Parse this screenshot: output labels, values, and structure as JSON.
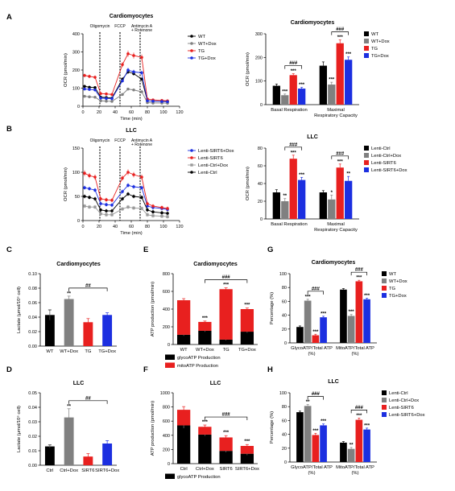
{
  "panel_letters": [
    "A",
    "B",
    "C",
    "D",
    "E",
    "F",
    "G",
    "H"
  ],
  "colors": {
    "black": "#000000",
    "grey": "#808080",
    "red": "#e8201f",
    "blue": "#1c2fe0",
    "lightgrey": "#9a9a9a"
  },
  "chart_data": [
    {
      "id": "A1",
      "type": "line",
      "title": "Cardiomyocytes",
      "xlabel": "Time (min)",
      "ylabel": "OCR (pmol/min)",
      "xlim": [
        0,
        120
      ],
      "ylim": [
        0,
        400
      ],
      "xticks": [
        0,
        20,
        40,
        60,
        80,
        100,
        120
      ],
      "yticks": [
        0,
        100,
        200,
        300,
        400
      ],
      "injections": [
        {
          "x": 21,
          "label": "Oligomycin"
        },
        {
          "x": 46,
          "label": "FCCP"
        },
        {
          "x": 71,
          "label": "Antimycin A"
        },
        {
          "x": 71,
          "label": "+ Rotenone"
        }
      ],
      "x": [
        2,
        8,
        15,
        22,
        29,
        36,
        49,
        56,
        63,
        73,
        80,
        87,
        98,
        105
      ],
      "series": [
        {
          "name": "WT",
          "color": "black",
          "marker": "circle",
          "values": [
            110,
            105,
            103,
            50,
            48,
            45,
            150,
            190,
            180,
            150,
            30,
            28,
            27,
            26
          ]
        },
        {
          "name": "WT+Dox",
          "color": "grey",
          "marker": "circle",
          "values": [
            55,
            52,
            50,
            30,
            28,
            27,
            65,
            95,
            90,
            80,
            20,
            18,
            18,
            17
          ]
        },
        {
          "name": "TG",
          "color": "red",
          "marker": "circle",
          "values": [
            170,
            165,
            160,
            70,
            68,
            65,
            230,
            290,
            280,
            270,
            40,
            35,
            32,
            30
          ]
        },
        {
          "name": "TG+Dox",
          "color": "blue",
          "marker": "circle",
          "values": [
            95,
            93,
            90,
            45,
            43,
            42,
            140,
            200,
            190,
            185,
            30,
            28,
            26,
            25
          ]
        }
      ]
    },
    {
      "id": "A2",
      "type": "bar",
      "title": "Cardiomyocytes",
      "ylabel": "OCR (pmol/min)",
      "ylim": [
        0,
        300
      ],
      "yticks": [
        0,
        100,
        200,
        300
      ],
      "categories": [
        "Basal Respiration",
        "Maximal\nRespiratory Capacity"
      ],
      "legend": [
        "WT",
        "WT+Dox",
        "TG",
        "TG+Dox"
      ],
      "series": [
        {
          "name": "WT",
          "color": "black",
          "values": [
            80,
            165
          ],
          "errors": [
            7,
            16
          ],
          "sig": [
            "",
            ""
          ]
        },
        {
          "name": "WT+Dox",
          "color": "grey",
          "values": [
            40,
            85
          ],
          "errors": [
            5,
            10
          ],
          "sig": [
            "***",
            "***"
          ]
        },
        {
          "name": "TG",
          "color": "red",
          "values": [
            125,
            260
          ],
          "errors": [
            6,
            14
          ],
          "sig": [
            "***",
            "***"
          ]
        },
        {
          "name": "TG+Dox",
          "color": "blue",
          "values": [
            68,
            190
          ],
          "errors": [
            5,
            12
          ],
          "sig": [
            "***",
            "***"
          ]
        }
      ],
      "brackets": [
        {
          "group": 0,
          "from": 1,
          "to": 3,
          "label": "###"
        },
        {
          "group": 1,
          "from": 1,
          "to": 3,
          "label": "###"
        }
      ]
    },
    {
      "id": "B1",
      "type": "line",
      "title": "LLC",
      "xlabel": "Time (min)",
      "ylabel": "OCR (pmol/min)",
      "xlim": [
        0,
        120
      ],
      "ylim": [
        0,
        150
      ],
      "xticks": [
        0,
        20,
        40,
        60,
        80,
        100,
        120
      ],
      "yticks": [
        0,
        50,
        100,
        150
      ],
      "injections": [
        {
          "x": 21,
          "label": "Oligomycin"
        },
        {
          "x": 46,
          "label": "FCCP"
        },
        {
          "x": 71,
          "label": "Antimycin A"
        },
        {
          "x": 71,
          "label": "+ Rotenone"
        }
      ],
      "x": [
        2,
        8,
        15,
        22,
        29,
        36,
        49,
        56,
        63,
        73,
        80,
        87,
        98,
        105
      ],
      "series": [
        {
          "name": "Lenti-SIRT6+Dox",
          "color": "blue",
          "marker": "circle",
          "values": [
            68,
            66,
            63,
            35,
            33,
            32,
            60,
            73,
            70,
            68,
            30,
            27,
            25,
            23
          ]
        },
        {
          "name": "Lenti-SIRT6",
          "color": "red",
          "marker": "circle",
          "values": [
            98,
            93,
            90,
            45,
            43,
            42,
            88,
            100,
            95,
            90,
            35,
            30,
            27,
            25
          ]
        },
        {
          "name": "Lenti-Ctrl+Dox",
          "color": "lightgrey",
          "marker": "square",
          "values": [
            30,
            28,
            28,
            14,
            12,
            12,
            24,
            28,
            26,
            25,
            12,
            10,
            9,
            8
          ]
        },
        {
          "name": "Lenti-Ctrl",
          "color": "black",
          "marker": "circle",
          "values": [
            50,
            48,
            45,
            22,
            20,
            20,
            45,
            55,
            50,
            48,
            22,
            18,
            16,
            15
          ]
        }
      ]
    },
    {
      "id": "B2",
      "type": "bar",
      "title": "LLC",
      "ylabel": "OCR (pmol/min)",
      "ylim": [
        0,
        80
      ],
      "yticks": [
        0,
        20,
        40,
        60,
        80
      ],
      "categories": [
        "Basal Respiration",
        "Maximal\nRespiratory Capacity"
      ],
      "legend": [
        "Lenti-Ctrl",
        "Lenti-Ctrl+Dox",
        "Lenti-SIRT6",
        "Lenti-SIRT6+Dox"
      ],
      "series": [
        {
          "name": "Lenti-Ctrl",
          "color": "black",
          "values": [
            30,
            30
          ],
          "errors": [
            3,
            2
          ],
          "sig": [
            "",
            ""
          ]
        },
        {
          "name": "Lenti-Ctrl+Dox",
          "color": "grey",
          "values": [
            20,
            22
          ],
          "errors": [
            3,
            5
          ],
          "sig": [
            "**",
            "*"
          ]
        },
        {
          "name": "Lenti-SIRT6",
          "color": "red",
          "values": [
            68,
            58
          ],
          "errors": [
            4,
            4
          ],
          "sig": [
            "***",
            "***"
          ]
        },
        {
          "name": "Lenti-SIRT6+Dox",
          "color": "blue",
          "values": [
            44,
            43
          ],
          "errors": [
            3,
            5
          ],
          "sig": [
            "***",
            "**"
          ]
        }
      ],
      "brackets": [
        {
          "group": 0,
          "from": 1,
          "to": 3,
          "label": "###"
        },
        {
          "group": 1,
          "from": 1,
          "to": 3,
          "label": "###"
        }
      ]
    },
    {
      "id": "C",
      "type": "bar",
      "title": "Cardiomyocytes",
      "ylabel": "Lactate (μmol/10⁶ cell)",
      "ylim": [
        0,
        0.1
      ],
      "yticks": [
        "0.00",
        "0.02",
        "0.04",
        "0.06",
        "0.08",
        "0.10"
      ],
      "categories": [
        "WT",
        "WT+Dox",
        "TG",
        "TG+Dox"
      ],
      "colors": [
        "black",
        "grey",
        "red",
        "blue"
      ],
      "values": [
        0.043,
        0.065,
        0.033,
        0.043
      ],
      "errors": [
        0.007,
        0.004,
        0.005,
        0.003
      ],
      "sig": [
        "",
        "**",
        "",
        ""
      ],
      "brackets": [
        {
          "from": 1,
          "to": 3,
          "label": "##"
        }
      ]
    },
    {
      "id": "D",
      "type": "bar",
      "title": "LLC",
      "ylabel": "Lactate (μmol/10⁶ cell)",
      "ylim": [
        0,
        0.05
      ],
      "yticks": [
        "0.00",
        "0.01",
        "0.02",
        "0.03",
        "0.04",
        "0.05"
      ],
      "categories": [
        "Ctrl",
        "Ctrl+Dox",
        "SIRT6",
        "SIRT6+Dox"
      ],
      "colors": [
        "black",
        "grey",
        "red",
        "blue"
      ],
      "values": [
        0.013,
        0.033,
        0.006,
        0.015
      ],
      "errors": [
        0.001,
        0.006,
        0.002,
        0.002
      ],
      "sig": [
        "",
        "**",
        "",
        ""
      ],
      "brackets": [
        {
          "from": 1,
          "to": 3,
          "label": "##"
        }
      ]
    },
    {
      "id": "E",
      "type": "bar",
      "title": "Cardiomyocytes",
      "stacked": true,
      "ylabel": "ATP production (pmol/min)",
      "ylim": [
        0,
        800
      ],
      "yticks": [
        0,
        200,
        400,
        600,
        800
      ],
      "categories": [
        "WT",
        "WT+Dox",
        "TG",
        "TG+Dox"
      ],
      "series": [
        {
          "name": "glycoATP Production",
          "color": "black",
          "values": [
            110,
            155,
            55,
            145
          ],
          "errors": [
            12,
            12,
            8,
            12
          ]
        },
        {
          "name": "mitoATP Production",
          "color": "red",
          "values": [
            390,
            100,
            570,
            255
          ],
          "errors": [
            18,
            10,
            15,
            12
          ]
        }
      ],
      "sig": [
        "",
        "***",
        "***",
        "***"
      ],
      "brackets": [
        {
          "from": 1,
          "to": 3,
          "label": "###"
        }
      ]
    },
    {
      "id": "F",
      "type": "bar",
      "title": "LLC",
      "stacked": true,
      "ylabel": "ATP production (pmol/min)",
      "ylim": [
        0,
        1000
      ],
      "yticks": [
        0,
        200,
        400,
        600,
        800,
        1000
      ],
      "categories": [
        "Ctrl",
        "Ctrl+Dox",
        "SIRT6",
        "SIRT6+Dox"
      ],
      "series": [
        {
          "name": "glycoATP Production",
          "color": "black",
          "values": [
            540,
            410,
            180,
            140
          ],
          "errors": [
            40,
            20,
            20,
            20
          ]
        },
        {
          "name": "mitoATP Production",
          "color": "red",
          "values": [
            220,
            110,
            190,
            110
          ],
          "errors": [
            45,
            25,
            25,
            20
          ]
        }
      ],
      "sig": [
        "",
        "***",
        "***",
        "***"
      ],
      "brackets": [
        {
          "from": 1,
          "to": 3,
          "label": "###"
        }
      ]
    },
    {
      "id": "G",
      "type": "bar",
      "title": "Cardiomyocytes",
      "ylabel": "Percentage (%)",
      "ylim": [
        0,
        100
      ],
      "yticks": [
        0,
        20,
        40,
        60,
        80,
        100
      ],
      "categories": [
        "GlycoATP/Total ATP\n(%)",
        "MitoATP/Total ATP\n(%)"
      ],
      "legend": [
        "WT",
        "WT+Dox",
        "TG",
        "TG+Dox"
      ],
      "series": [
        {
          "name": "WT",
          "color": "black",
          "values": [
            23,
            77
          ],
          "errors": [
            1.5,
            1.5
          ],
          "sig": [
            "",
            ""
          ]
        },
        {
          "name": "WT+Dox",
          "color": "grey",
          "values": [
            61,
            39
          ],
          "errors": [
            2,
            2
          ],
          "sig": [
            "***",
            "***"
          ]
        },
        {
          "name": "TG",
          "color": "red",
          "values": [
            11,
            89
          ],
          "errors": [
            1.5,
            1.5
          ],
          "sig": [
            "***",
            "***"
          ]
        },
        {
          "name": "TG+Dox",
          "color": "blue",
          "values": [
            37,
            63
          ],
          "errors": [
            1.5,
            1.5
          ],
          "sig": [
            "***",
            "***"
          ]
        }
      ],
      "brackets": [
        {
          "group": 0,
          "from": 1,
          "to": 3,
          "label": "###"
        },
        {
          "group": 1,
          "from": 1,
          "to": 3,
          "label": "###"
        }
      ]
    },
    {
      "id": "H",
      "type": "bar",
      "title": "LLC",
      "ylabel": "Percentage (%)",
      "ylim": [
        0,
        100
      ],
      "yticks": [
        0,
        20,
        40,
        60,
        80,
        100
      ],
      "categories": [
        "GlycoATP/Total ATP\n(%)",
        "MitoATP/Total ATP\n(%)"
      ],
      "legend": [
        "Lenti-Ctrl",
        "Lenti-Ctrl+Dox",
        "Lenti-SIRT6",
        "Lenti-SIRT6+Dox"
      ],
      "series": [
        {
          "name": "Lenti-Ctrl",
          "color": "black",
          "values": [
            72,
            28
          ],
          "errors": [
            1.5,
            1.5
          ],
          "sig": [
            "",
            ""
          ]
        },
        {
          "name": "Lenti-Ctrl+Dox",
          "color": "grey",
          "values": [
            81,
            19
          ],
          "errors": [
            2,
            2
          ],
          "sig": [
            "**",
            "**"
          ]
        },
        {
          "name": "Lenti-SIRT6",
          "color": "red",
          "values": [
            39,
            61
          ],
          "errors": [
            2.5,
            2.5
          ],
          "sig": [
            "***",
            "***"
          ]
        },
        {
          "name": "Lenti-SIRT6+Dox",
          "color": "blue",
          "values": [
            53,
            47
          ],
          "errors": [
            2,
            2
          ],
          "sig": [
            "***",
            "***"
          ]
        }
      ],
      "brackets": [
        {
          "group": 0,
          "from": 1,
          "to": 3,
          "label": "###"
        },
        {
          "group": 1,
          "from": 1,
          "to": 3,
          "label": "###"
        }
      ]
    }
  ]
}
